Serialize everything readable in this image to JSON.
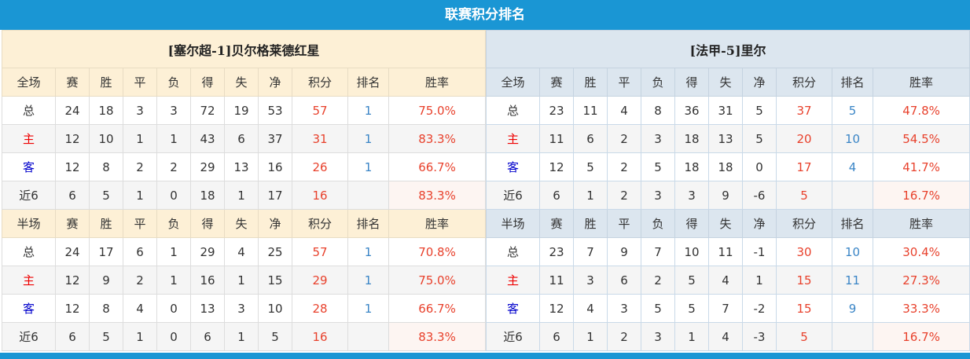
{
  "title": "联赛积分排名",
  "columns_full": [
    "全场",
    "赛",
    "胜",
    "平",
    "负",
    "得",
    "失",
    "净",
    "积分",
    "排名",
    "胜率"
  ],
  "columns_half": [
    "半场",
    "赛",
    "胜",
    "平",
    "负",
    "得",
    "失",
    "净",
    "积分",
    "排名",
    "胜率"
  ],
  "colors": {
    "accent": "#1a96d4",
    "points": "#e8412c",
    "rank": "#3a85c6",
    "home": "#e00000",
    "away": "#0000cc"
  },
  "teams": [
    {
      "name": "[塞尔超-1]贝尔格莱德红星",
      "full": [
        [
          "总",
          "24",
          "18",
          "3",
          "3",
          "72",
          "19",
          "53",
          "57",
          "1",
          "75.0%"
        ],
        [
          "主",
          "12",
          "10",
          "1",
          "1",
          "43",
          "6",
          "37",
          "31",
          "1",
          "83.3%"
        ],
        [
          "客",
          "12",
          "8",
          "2",
          "2",
          "29",
          "13",
          "16",
          "26",
          "1",
          "66.7%"
        ],
        [
          "近6",
          "6",
          "5",
          "1",
          "0",
          "18",
          "1",
          "17",
          "16",
          "",
          "83.3%"
        ]
      ],
      "half": [
        [
          "总",
          "24",
          "17",
          "6",
          "1",
          "29",
          "4",
          "25",
          "57",
          "1",
          "70.8%"
        ],
        [
          "主",
          "12",
          "9",
          "2",
          "1",
          "16",
          "1",
          "15",
          "29",
          "1",
          "75.0%"
        ],
        [
          "客",
          "12",
          "8",
          "4",
          "0",
          "13",
          "3",
          "10",
          "28",
          "1",
          "66.7%"
        ],
        [
          "近6",
          "6",
          "5",
          "1",
          "0",
          "6",
          "1",
          "5",
          "16",
          "",
          "83.3%"
        ]
      ]
    },
    {
      "name": "[法甲-5]里尔",
      "full": [
        [
          "总",
          "23",
          "11",
          "4",
          "8",
          "36",
          "31",
          "5",
          "37",
          "5",
          "47.8%"
        ],
        [
          "主",
          "11",
          "6",
          "2",
          "3",
          "18",
          "13",
          "5",
          "20",
          "10",
          "54.5%"
        ],
        [
          "客",
          "12",
          "5",
          "2",
          "5",
          "18",
          "18",
          "0",
          "17",
          "4",
          "41.7%"
        ],
        [
          "近6",
          "6",
          "1",
          "2",
          "3",
          "3",
          "9",
          "-6",
          "5",
          "",
          "16.7%"
        ]
      ],
      "half": [
        [
          "总",
          "23",
          "7",
          "9",
          "7",
          "10",
          "11",
          "-1",
          "30",
          "10",
          "30.4%"
        ],
        [
          "主",
          "11",
          "3",
          "6",
          "2",
          "5",
          "4",
          "1",
          "15",
          "11",
          "27.3%"
        ],
        [
          "客",
          "12",
          "4",
          "3",
          "5",
          "5",
          "7",
          "-2",
          "15",
          "9",
          "33.3%"
        ],
        [
          "近6",
          "6",
          "1",
          "2",
          "3",
          "1",
          "4",
          "-3",
          "5",
          "",
          "16.7%"
        ]
      ]
    }
  ]
}
